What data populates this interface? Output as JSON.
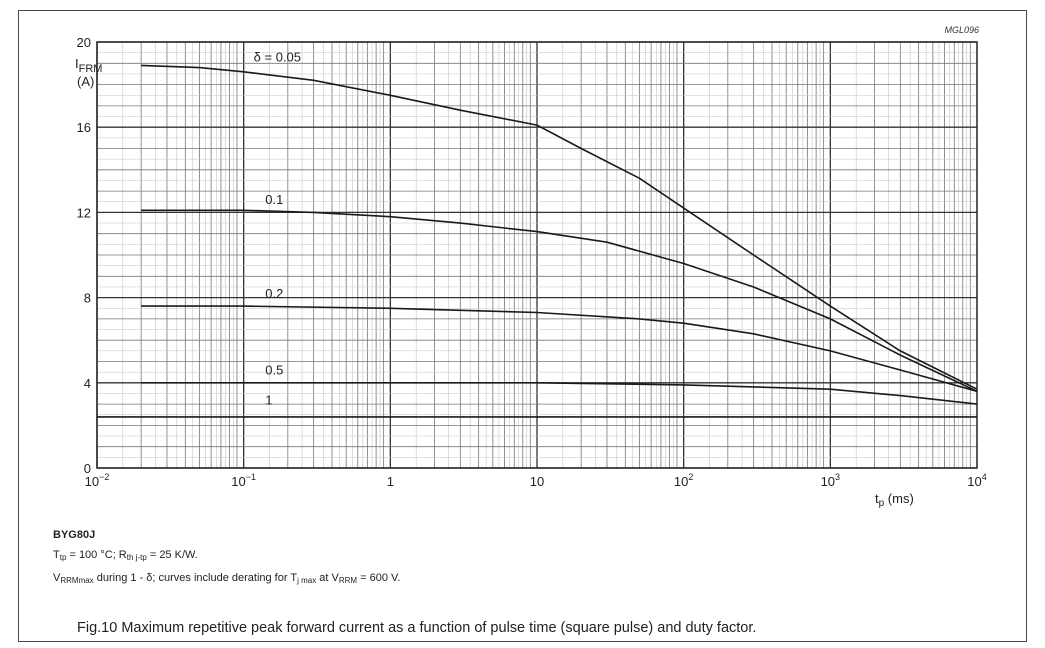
{
  "figure_code": "MGL096",
  "part_number": "BYG80J",
  "notes": {
    "line1": "Tₜₚ = 100 °C; Rₜₕ ⱼ₋ₜₚ = 25 K/W.",
    "line1_parts": [
      "T",
      "tp",
      " = 100 °C; R",
      "th j-tp",
      " = 25 K/W."
    ],
    "line2_parts": [
      "V",
      "RRMmax",
      " during 1 - δ; curves include derating for T",
      "j max",
      " at V",
      "RRM",
      " = 600 V."
    ]
  },
  "caption": "Fig.10  Maximum repetitive peak forward current as a function of pulse time (square pulse) and duty factor.",
  "chart_data": {
    "type": "line",
    "title": "",
    "ylabel_parts": [
      "I",
      "FRM",
      "(A)"
    ],
    "xlabel_parts": [
      "t",
      "p",
      " (ms)"
    ],
    "x_scale": "log",
    "xlim": [
      0.01,
      10000
    ],
    "ylim": [
      0,
      20
    ],
    "x_ticks": [
      {
        "value": 0.01,
        "base": "10",
        "exp": "−2"
      },
      {
        "value": 0.1,
        "base": "10",
        "exp": "−1"
      },
      {
        "value": 1,
        "base": "1",
        "exp": ""
      },
      {
        "value": 10,
        "base": "10",
        "exp": ""
      },
      {
        "value": 100,
        "base": "10",
        "exp": "2"
      },
      {
        "value": 1000,
        "base": "10",
        "exp": "3"
      },
      {
        "value": 10000,
        "base": "10",
        "exp": "4"
      }
    ],
    "y_ticks": [
      0,
      4,
      8,
      12,
      16,
      20
    ],
    "grid": true,
    "series": [
      {
        "label": "δ = 0.05",
        "label_at": 0.1,
        "label_y": 18.9,
        "points": [
          [
            0.02,
            18.9
          ],
          [
            0.05,
            18.8
          ],
          [
            0.1,
            18.6
          ],
          [
            0.3,
            18.2
          ],
          [
            1,
            17.5
          ],
          [
            3,
            16.8
          ],
          [
            10,
            16.1
          ],
          [
            20,
            15.0
          ],
          [
            50,
            13.6
          ],
          [
            100,
            12.2
          ],
          [
            300,
            10.0
          ],
          [
            1000,
            7.6
          ],
          [
            3000,
            5.5
          ],
          [
            10000,
            3.7
          ]
        ]
      },
      {
        "label": "0.1",
        "label_at": 0.12,
        "label_y": 12.2,
        "points": [
          [
            0.02,
            12.1
          ],
          [
            0.1,
            12.1
          ],
          [
            0.3,
            12.0
          ],
          [
            1,
            11.8
          ],
          [
            3,
            11.5
          ],
          [
            10,
            11.1
          ],
          [
            30,
            10.6
          ],
          [
            100,
            9.6
          ],
          [
            300,
            8.5
          ],
          [
            1000,
            7.0
          ],
          [
            3000,
            5.3
          ],
          [
            10000,
            3.6
          ]
        ]
      },
      {
        "label": "0.2",
        "label_at": 0.12,
        "label_y": 7.8,
        "points": [
          [
            0.02,
            7.6
          ],
          [
            0.1,
            7.6
          ],
          [
            1,
            7.5
          ],
          [
            10,
            7.3
          ],
          [
            50,
            7.0
          ],
          [
            100,
            6.8
          ],
          [
            300,
            6.3
          ],
          [
            1000,
            5.5
          ],
          [
            3000,
            4.6
          ],
          [
            10000,
            3.6
          ]
        ]
      },
      {
        "label": "0.5",
        "label_at": 0.12,
        "label_y": 4.2,
        "points": [
          [
            0.02,
            4.0
          ],
          [
            0.1,
            4.0
          ],
          [
            1,
            4.0
          ],
          [
            10,
            4.0
          ],
          [
            100,
            3.9
          ],
          [
            1000,
            3.7
          ],
          [
            3000,
            3.4
          ],
          [
            10000,
            3.0
          ]
        ]
      },
      {
        "label": "1",
        "label_at": 0.12,
        "label_y": 2.8,
        "points": [
          [
            0.01,
            2.4
          ],
          [
            0.1,
            2.4
          ],
          [
            1,
            2.4
          ],
          [
            10,
            2.4
          ],
          [
            100,
            2.4
          ],
          [
            1000,
            2.4
          ],
          [
            10000,
            2.4
          ]
        ]
      }
    ]
  }
}
